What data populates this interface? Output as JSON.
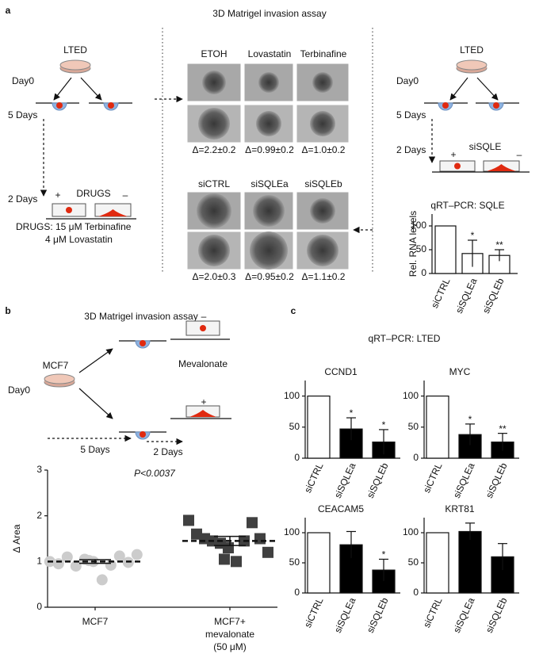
{
  "panel_a": {
    "label": "a",
    "title": "3D Matrigel invasion assay",
    "left": {
      "source": "LTED",
      "day0": "Day0",
      "step1": "5 Days",
      "step2": "2 Days",
      "treatment": "DRUGS",
      "plus": "+",
      "minus": "–",
      "drugs_line1": "DRUGS: 15 μM Terbinafine",
      "drugs_line2": "4 μM Lovastatin"
    },
    "drug_images": {
      "columns": [
        "ETOH",
        "Lovastatin",
        "Terbinafine"
      ],
      "deltas": [
        "Δ=2.2±0.2",
        "Δ=0.99±0.2",
        "Δ=1.0±0.2"
      ]
    },
    "si_images": {
      "columns": [
        "siCTRL",
        "siSQLEa",
        "siSQLEb"
      ],
      "deltas": [
        "Δ=2.0±0.3",
        "Δ=0.95±0.2",
        "Δ=1.1±0.2"
      ]
    },
    "right": {
      "source": "LTED",
      "day0": "Day0",
      "step1": "5 Days",
      "step2": "2 Days",
      "treatment": "siSQLE",
      "plus": "+",
      "minus": "–"
    }
  },
  "panel_b": {
    "label": "b",
    "title": "3D Matrigel invasion assay",
    "source": "MCF7",
    "day0": "Day0",
    "treatment": "Mevalonate",
    "minus": "–",
    "plus": "+",
    "step1": "5 Days",
    "step2": "2 Days"
  },
  "panel_c": {
    "label": "c",
    "title": "qRT–PCR: LTED"
  },
  "chart_data": [
    {
      "type": "bar",
      "title": "qRT–PCR: SQLE",
      "ylabel": "Rel. RNA levels",
      "categories": [
        "siCTRL",
        "siSQLEa",
        "siSQLEb"
      ],
      "values": [
        100,
        42,
        38
      ],
      "errors": [
        null,
        28,
        12
      ],
      "stars": [
        null,
        "*",
        "**"
      ],
      "colors": [
        "#ffffff",
        "#ffffff",
        "#ffffff"
      ],
      "ylim": [
        0,
        125
      ],
      "yticks": [
        0,
        50,
        100
      ]
    },
    {
      "type": "scatter",
      "ylabel": "Δ Area",
      "annotation": "P<0.0037",
      "categories": [
        [
          "MCF7"
        ],
        [
          "MCF7+",
          "mevalonate",
          "(50 μM)"
        ]
      ],
      "ylim": [
        0,
        3
      ],
      "yticks": [
        0,
        1,
        2,
        3
      ],
      "series": [
        {
          "marker": "circle",
          "color": "#cccccc",
          "values": [
            1.0,
            0.95,
            1.1,
            0.9,
            1.05,
            1.0,
            0.6,
            0.92,
            1.12,
            0.98,
            1.15,
            1.02
          ],
          "mean": 1.0,
          "sem": 0.04
        },
        {
          "marker": "square",
          "color": "#404040",
          "values": [
            1.9,
            1.6,
            1.5,
            1.45,
            1.4,
            1.3,
            1.0,
            1.45,
            1.85,
            1.5,
            1.2,
            1.05
          ],
          "mean": 1.45,
          "sem": 0.1
        }
      ]
    },
    {
      "type": "bar",
      "title": "CCND1",
      "categories": [
        "siCTRL",
        "siSQLEa",
        "siSQLEb"
      ],
      "values": [
        100,
        47,
        26
      ],
      "errors": [
        null,
        18,
        20
      ],
      "stars": [
        null,
        "*",
        "*"
      ],
      "colors": [
        "#ffffff",
        "#000000",
        "#000000"
      ],
      "ylim": [
        0,
        125
      ],
      "yticks": [
        0,
        50,
        100
      ]
    },
    {
      "type": "bar",
      "title": "MYC",
      "categories": [
        "siCTRL",
        "siSQLEa",
        "siSQLEb"
      ],
      "values": [
        100,
        38,
        26
      ],
      "errors": [
        null,
        17,
        14
      ],
      "stars": [
        null,
        "*",
        "**"
      ],
      "colors": [
        "#ffffff",
        "#000000",
        "#000000"
      ],
      "ylim": [
        0,
        125
      ],
      "yticks": [
        0,
        50,
        100
      ]
    },
    {
      "type": "bar",
      "title": "CEACAM5",
      "categories": [
        "siCTRL",
        "siSQLEa",
        "siSQLEb"
      ],
      "values": [
        100,
        80,
        38
      ],
      "errors": [
        null,
        22,
        18
      ],
      "stars": [
        null,
        null,
        "*"
      ],
      "colors": [
        "#ffffff",
        "#000000",
        "#000000"
      ],
      "ylim": [
        0,
        125
      ],
      "yticks": [
        0,
        50,
        100
      ]
    },
    {
      "type": "bar",
      "title": "KRT81",
      "categories": [
        "siCTRL",
        "siSQLEa",
        "siSQLEb"
      ],
      "values": [
        100,
        102,
        60
      ],
      "errors": [
        null,
        14,
        22
      ],
      "stars": [
        null,
        null,
        null
      ],
      "colors": [
        "#ffffff",
        "#000000",
        "#000000"
      ],
      "ylim": [
        0,
        125
      ],
      "yticks": [
        0,
        50,
        100
      ]
    }
  ]
}
